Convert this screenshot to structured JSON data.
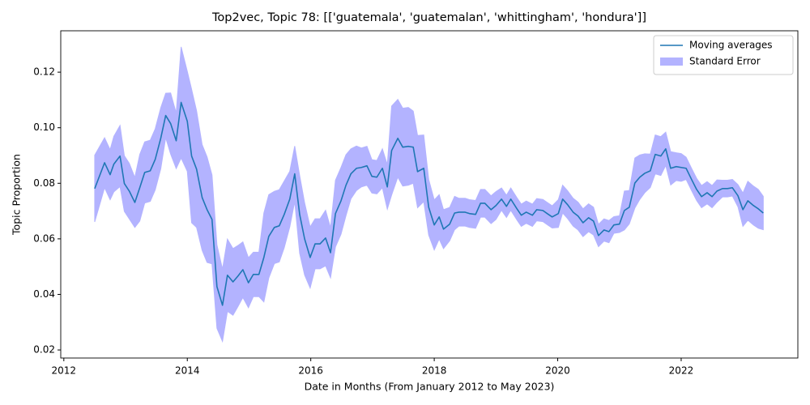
{
  "chart_data": {
    "type": "line",
    "title": "Top2vec, Topic 78: [['guatemala', 'guatemalan', 'whittingham', 'hondura']]",
    "x_label": "Date in Months (From January 2012 to May 2023)",
    "y_label": "Topic Proportion",
    "xlim": [
      2011.95,
      2023.89
    ],
    "ylim": [
      0.0171,
      0.1349
    ],
    "xticks": [
      2012,
      2014,
      2016,
      2018,
      2020,
      2022
    ],
    "yticks": [
      0.02,
      0.04,
      0.06,
      0.08,
      {
        "value": 0.1,
        "label": "0.10"
      },
      0.12
    ],
    "legend": "upper right",
    "x": [
      2012.5,
      2012.66,
      2012.75,
      2012.81,
      2012.91,
      2012.98,
      2013.06,
      2013.15,
      2013.23,
      2013.31,
      2013.4,
      2013.48,
      2013.57,
      2013.65,
      2013.73,
      2013.82,
      2013.9,
      2014.0,
      2014.07,
      2014.15,
      2014.24,
      2014.32,
      2014.4,
      2014.48,
      2014.57,
      2014.65,
      2014.74,
      2014.82,
      2014.9,
      2014.99,
      2015.07,
      2015.16,
      2015.24,
      2015.32,
      2015.41,
      2015.49,
      2015.57,
      2015.66,
      2015.74,
      2015.82,
      2015.9,
      2015.99,
      2016.07,
      2016.15,
      2016.24,
      2016.32,
      2016.4,
      2016.49,
      2016.57,
      2016.65,
      2016.74,
      2016.82,
      2016.91,
      2016.99,
      2017.07,
      2017.16,
      2017.24,
      2017.31,
      2017.41,
      2017.49,
      2017.58,
      2017.66,
      2017.73,
      2017.83,
      2017.91,
      2018.0,
      2018.08,
      2018.15,
      2018.25,
      2018.33,
      2018.4,
      2018.5,
      2018.57,
      2018.67,
      2018.75,
      2018.82,
      2018.92,
      2019.0,
      2019.09,
      2019.17,
      2019.24,
      2019.34,
      2019.41,
      2019.49,
      2019.59,
      2019.66,
      2019.76,
      2019.83,
      2019.91,
      2020.01,
      2020.08,
      2020.16,
      2020.25,
      2020.33,
      2020.41,
      2020.5,
      2020.58,
      2020.66,
      2020.75,
      2020.83,
      2020.91,
      2021.0,
      2021.08,
      2021.16,
      2021.25,
      2021.33,
      2021.41,
      2021.5,
      2021.58,
      2021.67,
      2021.75,
      2021.83,
      2021.92,
      2022.0,
      2022.08,
      2022.17,
      2022.25,
      2022.33,
      2022.42,
      2022.5,
      2022.58,
      2022.67,
      2022.75,
      2022.83,
      2022.92,
      2023.0,
      2023.08,
      2023.17,
      2023.25,
      2023.33
    ],
    "series": [
      {
        "name": "Moving averages",
        "color": "#1f77b4",
        "values": [
          0.0781,
          0.0874,
          0.0831,
          0.0869,
          0.0898,
          0.0799,
          0.0772,
          0.0731,
          0.0784,
          0.0839,
          0.0845,
          0.0886,
          0.0962,
          0.1044,
          0.1015,
          0.0953,
          0.1091,
          0.1023,
          0.0898,
          0.0851,
          0.0749,
          0.0705,
          0.067,
          0.0428,
          0.0361,
          0.0469,
          0.0445,
          0.0466,
          0.0489,
          0.0442,
          0.0472,
          0.0472,
          0.0533,
          0.0609,
          0.0641,
          0.0647,
          0.0688,
          0.0743,
          0.0834,
          0.0688,
          0.06,
          0.0533,
          0.0582,
          0.0582,
          0.0603,
          0.055,
          0.0691,
          0.0737,
          0.0793,
          0.0834,
          0.0854,
          0.0857,
          0.0863,
          0.0825,
          0.0822,
          0.0854,
          0.0787,
          0.0918,
          0.0962,
          0.093,
          0.0933,
          0.093,
          0.0842,
          0.0854,
          0.0714,
          0.065,
          0.0679,
          0.0635,
          0.0653,
          0.0693,
          0.0696,
          0.0696,
          0.0691,
          0.0688,
          0.0728,
          0.0728,
          0.0705,
          0.072,
          0.0743,
          0.0717,
          0.0743,
          0.0708,
          0.0685,
          0.0696,
          0.0685,
          0.0705,
          0.0702,
          0.0691,
          0.0679,
          0.0691,
          0.0743,
          0.0723,
          0.0696,
          0.0682,
          0.0658,
          0.0676,
          0.0664,
          0.0612,
          0.0632,
          0.0626,
          0.065,
          0.0653,
          0.0702,
          0.0714,
          0.0801,
          0.0822,
          0.0836,
          0.0845,
          0.0904,
          0.0898,
          0.0924,
          0.0854,
          0.086,
          0.0857,
          0.0854,
          0.0813,
          0.0778,
          0.0752,
          0.0766,
          0.0752,
          0.0772,
          0.0781,
          0.0781,
          0.0784,
          0.0755,
          0.0705,
          0.0737,
          0.072,
          0.0708,
          0.0693
        ]
      },
      {
        "name": "Standard Error",
        "color": "#b3b3ff",
        "values": [
          0.012,
          0.009,
          0.009,
          0.01,
          0.011,
          0.01,
          0.01,
          0.009,
          0.012,
          0.011,
          0.011,
          0.011,
          0.011,
          0.008,
          0.011,
          0.01,
          0.02,
          0.018,
          0.024,
          0.021,
          0.019,
          0.019,
          0.016,
          0.015,
          0.013,
          0.013,
          0.012,
          0.011,
          0.01,
          0.009,
          0.008,
          0.008,
          0.016,
          0.015,
          0.013,
          0.013,
          0.012,
          0.01,
          0.01,
          0.014,
          0.013,
          0.011,
          0.009,
          0.009,
          0.01,
          0.009,
          0.012,
          0.012,
          0.011,
          0.009,
          0.008,
          0.007,
          0.007,
          0.006,
          0.006,
          0.007,
          0.008,
          0.016,
          0.014,
          0.014,
          0.014,
          0.013,
          0.013,
          0.012,
          0.01,
          0.009,
          0.008,
          0.007,
          0.006,
          0.006,
          0.005,
          0.005,
          0.005,
          0.005,
          0.005,
          0.005,
          0.005,
          0.005,
          0.004,
          0.004,
          0.004,
          0.004,
          0.004,
          0.004,
          0.004,
          0.004,
          0.004,
          0.004,
          0.004,
          0.005,
          0.005,
          0.005,
          0.005,
          0.005,
          0.005,
          0.005,
          0.005,
          0.004,
          0.004,
          0.004,
          0.003,
          0.003,
          0.007,
          0.006,
          0.009,
          0.008,
          0.007,
          0.006,
          0.007,
          0.007,
          0.006,
          0.006,
          0.005,
          0.005,
          0.004,
          0.004,
          0.004,
          0.004,
          0.004,
          0.004,
          0.004,
          0.003,
          0.003,
          0.003,
          0.004,
          0.006,
          0.007,
          0.007,
          0.007,
          0.006
        ]
      }
    ]
  }
}
